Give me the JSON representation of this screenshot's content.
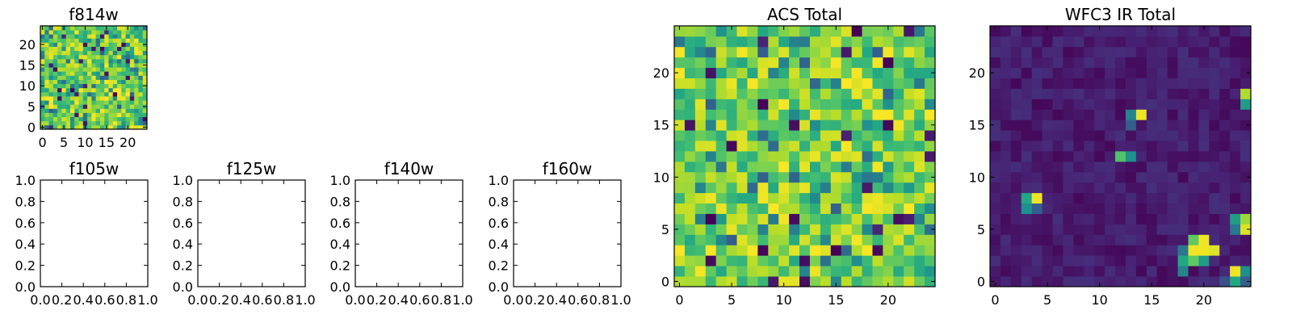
{
  "figure": {
    "background": "#ffffff"
  },
  "chart_data": [
    {
      "id": "f814w",
      "type": "heatmap",
      "title": "f814w",
      "colormap": "viridis",
      "grid_size": [
        25,
        25
      ],
      "value_range": [
        0,
        1
      ],
      "xlim": [
        -0.5,
        24.5
      ],
      "ylim": [
        -0.5,
        24.5
      ],
      "xticks": [
        0,
        5,
        10,
        15,
        20
      ],
      "yticks": [
        0,
        5,
        10,
        15,
        20
      ],
      "data_note": "noisy field, mostly high values (green/yellow) with scattered low (dark) pixels",
      "seed": 814,
      "distribution": "acs"
    },
    {
      "id": "f105w",
      "type": "empty",
      "title": "f105w",
      "xlim": [
        0,
        1
      ],
      "ylim": [
        0,
        1
      ],
      "xticks": [
        "0.0",
        "0.2",
        "0.4",
        "0.6",
        "0.8",
        "1.0"
      ],
      "yticks": [
        "0.0",
        "0.2",
        "0.4",
        "0.6",
        "0.8",
        "1.0"
      ]
    },
    {
      "id": "f125w",
      "type": "empty",
      "title": "f125w",
      "xlim": [
        0,
        1
      ],
      "ylim": [
        0,
        1
      ],
      "xticks": [
        "0.0",
        "0.2",
        "0.4",
        "0.6",
        "0.8",
        "1.0"
      ],
      "yticks": [
        "0.0",
        "0.2",
        "0.4",
        "0.6",
        "0.8",
        "1.0"
      ]
    },
    {
      "id": "f140w",
      "type": "empty",
      "title": "f140w",
      "xlim": [
        0,
        1
      ],
      "ylim": [
        0,
        1
      ],
      "xticks": [
        "0.0",
        "0.2",
        "0.4",
        "0.6",
        "0.8",
        "1.0"
      ],
      "yticks": [
        "0.0",
        "0.2",
        "0.4",
        "0.6",
        "0.8",
        "1.0"
      ]
    },
    {
      "id": "f160w",
      "type": "empty",
      "title": "f160w",
      "xlim": [
        0,
        1
      ],
      "ylim": [
        0,
        1
      ],
      "xticks": [
        "0.0",
        "0.2",
        "0.4",
        "0.6",
        "0.8",
        "1.0"
      ],
      "yticks": [
        "0.0",
        "0.2",
        "0.4",
        "0.6",
        "0.8",
        "1.0"
      ]
    },
    {
      "id": "acs_total",
      "type": "heatmap",
      "title": "ACS Total",
      "colormap": "viridis",
      "grid_size": [
        25,
        25
      ],
      "value_range": [
        0,
        1
      ],
      "xlim": [
        -0.5,
        24.5
      ],
      "ylim": [
        -0.5,
        24.5
      ],
      "xticks": [
        0,
        5,
        10,
        15,
        20
      ],
      "yticks": [
        0,
        5,
        10,
        15,
        20
      ],
      "data_note": "same noisy field as f814w, mostly green/yellow with a few dark pixels",
      "seed": 2024,
      "distribution": "acs"
    },
    {
      "id": "wfc3_ir_total",
      "type": "heatmap",
      "title": "WFC3 IR Total",
      "colormap": "viridis",
      "grid_size": [
        25,
        25
      ],
      "value_range": [
        0,
        1
      ],
      "xlim": [
        -0.5,
        24.5
      ],
      "ylim": [
        -0.5,
        24.5
      ],
      "xticks": [
        0,
        5,
        10,
        15,
        20
      ],
      "yticks": [
        0,
        5,
        10,
        15,
        20
      ],
      "data_note": "mostly dark purple background with a few bright sources",
      "seed": 105,
      "distribution": "ir",
      "bright_pixels": [
        {
          "x": 24,
          "y": 18,
          "value": 0.88
        },
        {
          "x": 24,
          "y": 17,
          "value": 0.55
        },
        {
          "x": 14,
          "y": 16,
          "value": 0.98
        },
        {
          "x": 13,
          "y": 16,
          "value": 0.45
        },
        {
          "x": 13,
          "y": 15,
          "value": 0.3
        },
        {
          "x": 12,
          "y": 12,
          "value": 0.72
        },
        {
          "x": 13,
          "y": 12,
          "value": 0.5
        },
        {
          "x": 4,
          "y": 8,
          "value": 0.98
        },
        {
          "x": 3,
          "y": 8,
          "value": 0.6
        },
        {
          "x": 3,
          "y": 7,
          "value": 0.5
        },
        {
          "x": 4,
          "y": 7,
          "value": 0.3
        },
        {
          "x": 24,
          "y": 6,
          "value": 0.85
        },
        {
          "x": 23,
          "y": 6,
          "value": 0.55
        },
        {
          "x": 24,
          "y": 5,
          "value": 0.95
        },
        {
          "x": 23,
          "y": 5,
          "value": 0.4
        },
        {
          "x": 20,
          "y": 4,
          "value": 0.98
        },
        {
          "x": 19,
          "y": 4,
          "value": 0.75
        },
        {
          "x": 19,
          "y": 3,
          "value": 0.98
        },
        {
          "x": 20,
          "y": 3,
          "value": 0.98
        },
        {
          "x": 21,
          "y": 3,
          "value": 0.95
        },
        {
          "x": 18,
          "y": 3,
          "value": 0.4
        },
        {
          "x": 18,
          "y": 2,
          "value": 0.6
        },
        {
          "x": 19,
          "y": 2,
          "value": 0.75
        },
        {
          "x": 20,
          "y": 2,
          "value": 0.55
        },
        {
          "x": 18,
          "y": 1,
          "value": 0.45
        },
        {
          "x": 23,
          "y": 1,
          "value": 0.98
        },
        {
          "x": 24,
          "y": 1,
          "value": 0.5
        },
        {
          "x": 23,
          "y": 0,
          "value": 0.6
        },
        {
          "x": 24,
          "y": 0,
          "value": 0.3
        },
        {
          "x": 22,
          "y": 0,
          "value": 0.25
        }
      ]
    }
  ]
}
